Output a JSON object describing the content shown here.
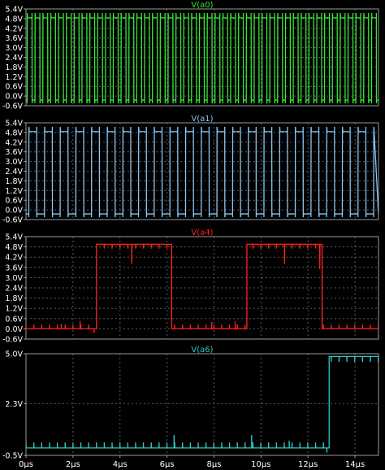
{
  "theme": {
    "background": "#000000",
    "frame": "#9a9a9a",
    "grid": "#5a5a5a",
    "text": "#ffffff"
  },
  "x_axis": {
    "unit": "µs",
    "range": [
      0,
      15
    ],
    "ticks": [
      0,
      2,
      4,
      6,
      8,
      10,
      12,
      14
    ],
    "tick_labels": [
      "0µs",
      "2µs",
      "4µs",
      "6µs",
      "8µs",
      "10µs",
      "12µs",
      "14µs"
    ]
  },
  "chart_data": [
    {
      "type": "line",
      "title": "V(a0)",
      "color": "#39e639",
      "ylim": [
        -0.6,
        5.4
      ],
      "yticks": [
        "5.4V",
        "4.8V",
        "4.2V",
        "3.6V",
        "3.0V",
        "2.4V",
        "1.8V",
        "1.2V",
        "0.6V",
        "0.0V",
        "-0.6V"
      ],
      "grid": true,
      "wave": {
        "kind": "clock",
        "period_us": 0.333,
        "duty": 0.62,
        "phase_us": 0.05,
        "low_v": -0.25,
        "high_v": 4.85,
        "overshoot_v": 5.15,
        "undershoot_v": -0.45
      }
    },
    {
      "type": "line",
      "title": "V(a1)",
      "color": "#88c8f8",
      "ylim": [
        -0.6,
        5.4
      ],
      "yticks": [
        "5.4V",
        "4.8V",
        "4.2V",
        "3.6V",
        "3.0V",
        "2.4V",
        "1.8V",
        "1.2V",
        "0.6V",
        "0.0V",
        "-0.6V"
      ],
      "grid": true,
      "wave": {
        "kind": "clock",
        "period_us": 0.667,
        "duty": 0.5,
        "phase_us": 0.12,
        "low_v": -0.25,
        "high_v": 4.85,
        "overshoot_v": 5.15,
        "undershoot_v": -0.45
      }
    },
    {
      "type": "line",
      "title": "V(a4)",
      "color": "#ff2020",
      "ylim": [
        -0.6,
        5.4
      ],
      "yticks": [
        "5.4V",
        "4.8V",
        "4.2V",
        "3.6V",
        "3.0V",
        "2.4V",
        "1.8V",
        "1.2V",
        "0.6V",
        "0.0V",
        "-0.6V"
      ],
      "grid": true,
      "wave": {
        "kind": "pulses",
        "low_v": 0.0,
        "high_v": 4.95,
        "high_intervals_us": [
          [
            3.0,
            6.2
          ],
          [
            9.4,
            12.6
          ]
        ],
        "glitch_period_us": 0.333,
        "glitch_v": 0.25,
        "spikes": [
          [
            1.5,
            0.3
          ],
          [
            2.3,
            0.45
          ],
          [
            2.9,
            -0.25
          ],
          [
            4.5,
            3.8
          ],
          [
            7.9,
            0.4
          ],
          [
            8.9,
            0.45
          ],
          [
            11.0,
            3.8
          ],
          [
            12.5,
            3.5
          ]
        ]
      }
    },
    {
      "type": "line",
      "title": "V(a6)",
      "color": "#2cc8c8",
      "ylim": [
        -0.5,
        5.0
      ],
      "yticks": [
        "5.0V",
        "2.3V",
        "-0.5V"
      ],
      "grid": true,
      "wave": {
        "kind": "step",
        "low_v": -0.1,
        "high_v": 4.85,
        "step_at_us": 12.9,
        "glitch_period_us": 0.333,
        "glitch_v": 0.3,
        "spikes": [
          [
            6.3,
            0.6
          ],
          [
            9.6,
            0.6
          ],
          [
            11.2,
            0.3
          ],
          [
            12.8,
            -0.35
          ]
        ]
      }
    }
  ]
}
